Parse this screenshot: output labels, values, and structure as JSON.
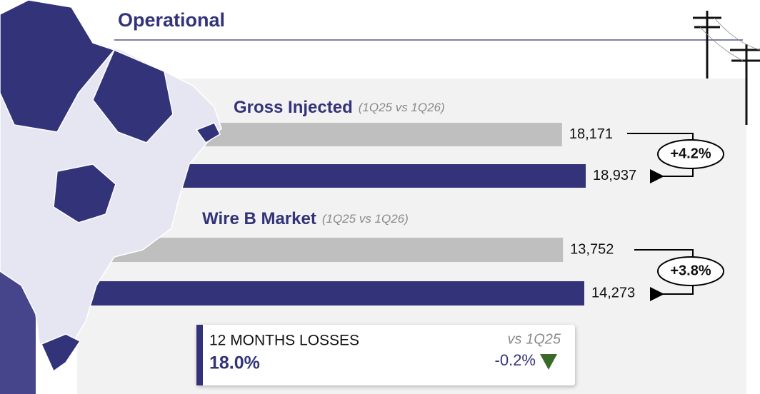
{
  "header": {
    "title": "Operational"
  },
  "gross_injected": {
    "title": "Gross Injected",
    "period": "(1Q25 vs 1Q26)",
    "values": [
      {
        "value": 18171,
        "label": "18,171"
      },
      {
        "value": 18937,
        "label": "18,937"
      }
    ],
    "change": "+4.2%"
  },
  "wire_b_market": {
    "title": "Wire B Market",
    "period": "(1Q25 vs 1Q26)",
    "values": [
      {
        "value": 13752,
        "label": "13,752"
      },
      {
        "value": 14273,
        "label": "14,273"
      }
    ],
    "change": "+3.8%"
  },
  "losses": {
    "title": "12 MONTHS LOSSES",
    "value": "18.0%",
    "comparison": "vs 1Q25",
    "change": "-0.2%"
  }
}
